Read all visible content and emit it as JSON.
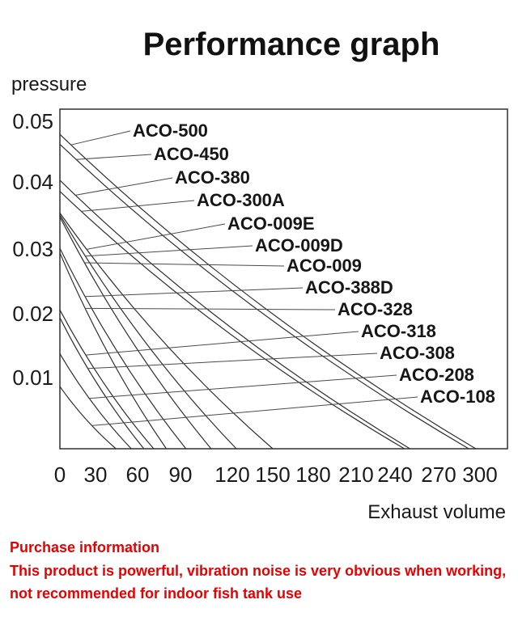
{
  "title": "Performance graph",
  "chart_data": {
    "type": "line",
    "title": "Performance graph",
    "xlabel": "Exhaust volume",
    "ylabel": "pressure",
    "xlim": [
      0,
      320
    ],
    "ylim": [
      0,
      0.052
    ],
    "x_ticks": [
      "0",
      "30",
      "60",
      "90",
      "120",
      "150",
      "180",
      "210",
      "240",
      "270",
      "300"
    ],
    "y_ticks": [
      "0.05",
      "0.04",
      "0.03",
      "0.02",
      "0.01"
    ],
    "grid": false,
    "legend_position": "inline-labels-with-leader-lines",
    "curve_shape": "each curve declines, slightly concave toward origin, from (0, max_pressure) on the y-axis to (max_exhaust_volume, 0) on the x-axis",
    "series": [
      {
        "name": "ACO-500",
        "max_pressure": 0.048,
        "max_exhaust_volume": 297
      },
      {
        "name": "ACO-450",
        "max_pressure": 0.0465,
        "max_exhaust_volume": 292
      },
      {
        "name": "ACO-380",
        "max_pressure": 0.041,
        "max_exhaust_volume": 250
      },
      {
        "name": "ACO-300A",
        "max_pressure": 0.0393,
        "max_exhaust_volume": 246
      },
      {
        "name": "ACO-009E",
        "max_pressure": 0.036,
        "max_exhaust_volume": 152
      },
      {
        "name": "ACO-009D",
        "max_pressure": 0.0357,
        "max_exhaust_volume": 126
      },
      {
        "name": "ACO-009",
        "max_pressure": 0.0354,
        "max_exhaust_volume": 108
      },
      {
        "name": "ACO-388D",
        "max_pressure": 0.0306,
        "max_exhaust_volume": 90
      },
      {
        "name": "ACO-328",
        "max_pressure": 0.0299,
        "max_exhaust_volume": 76
      },
      {
        "name": "ACO-318",
        "max_pressure": 0.0212,
        "max_exhaust_volume": 67
      },
      {
        "name": "ACO-308",
        "max_pressure": 0.02,
        "max_exhaust_volume": 60
      },
      {
        "name": "ACO-208",
        "max_pressure": 0.0145,
        "max_exhaust_volume": 51
      },
      {
        "name": "ACO-108",
        "max_pressure": 0.0095,
        "max_exhaust_volume": 40
      }
    ]
  },
  "footer": {
    "heading": "Purchase information",
    "line1": "This product is powerful, vibration noise is very obvious when working,",
    "line2": "not recommended for indoor fish tank use",
    "color": "#e60000"
  }
}
